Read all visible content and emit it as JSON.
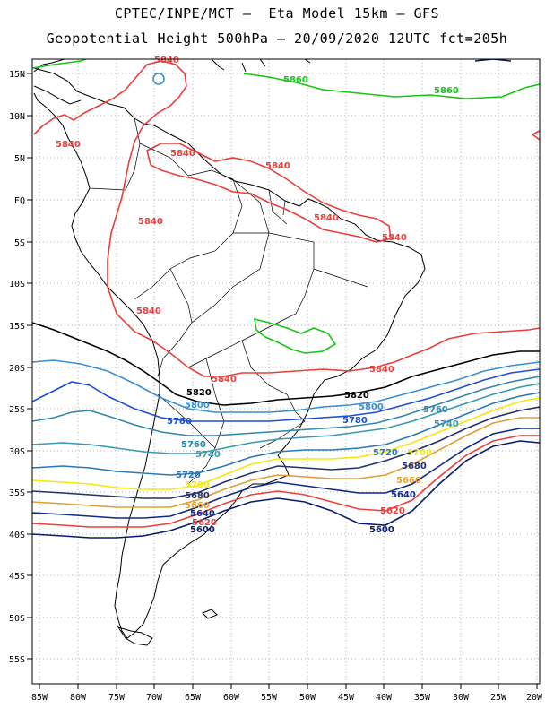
{
  "header": {
    "title_line1": "CPTEC/INPE/MCT –  Eta Model 15km – GFS",
    "title_line2": "Geopotential Height 500hPa – 20/09/2020 12UTC fct=205h"
  },
  "axes": {
    "lat_labels": [
      "15N",
      "10N",
      "5N",
      "EQ",
      "5S",
      "10S",
      "15S",
      "20S",
      "25S",
      "30S",
      "35S",
      "40S",
      "45S",
      "50S",
      "55S"
    ],
    "lon_labels": [
      "85W",
      "80W",
      "75W",
      "70W",
      "65W",
      "60W",
      "55W",
      "50W",
      "45W",
      "40W",
      "35W",
      "30W",
      "25W",
      "20W"
    ]
  },
  "colors": {
    "c5600": "#0a1a6e",
    "c5620": "#e8403c",
    "c5640": "#102a8a",
    "c5660": "#e0a030",
    "c5680": "#22306e",
    "c5700": "#f2ea0a",
    "c5720": "#2a78b8",
    "c5740": "#3a9ab0",
    "c5760": "#2f88a8",
    "c5780": "#1c4fd6",
    "c5800": "#3a8fd0",
    "c5820": "#000000",
    "c5840": "#e8403c",
    "c5860": "#14c814"
  },
  "contour_labels": [
    {
      "text": "5860",
      "color": "#14c814"
    },
    {
      "text": "5860",
      "color": "#14c814"
    },
    {
      "text": "5840",
      "color": "#e8403c"
    },
    {
      "text": "5840",
      "color": "#e8403c"
    },
    {
      "text": "5840",
      "color": "#e8403c"
    },
    {
      "text": "5840",
      "color": "#e8403c"
    },
    {
      "text": "5840",
      "color": "#e8403c"
    },
    {
      "text": "5840",
      "color": "#e8403c"
    },
    {
      "text": "5840",
      "color": "#e8403c"
    },
    {
      "text": "5840",
      "color": "#e8403c"
    },
    {
      "text": "5840",
      "color": "#e8403c"
    },
    {
      "text": "5840",
      "color": "#e8403c"
    },
    {
      "text": "5820",
      "color": "#000000"
    },
    {
      "text": "5820",
      "color": "#000000"
    },
    {
      "text": "5800",
      "color": "#3a8fd0"
    },
    {
      "text": "5800",
      "color": "#3a8fd0"
    },
    {
      "text": "5780",
      "color": "#1c4fd6"
    },
    {
      "text": "5780",
      "color": "#1c4fd6"
    },
    {
      "text": "5760",
      "color": "#2f88a8"
    },
    {
      "text": "5760",
      "color": "#2f88a8"
    },
    {
      "text": "5740",
      "color": "#3a9ab0"
    },
    {
      "text": "5740",
      "color": "#3a9ab0"
    },
    {
      "text": "5720",
      "color": "#2a78b8"
    },
    {
      "text": "5720",
      "color": "#2a78b8"
    },
    {
      "text": "5700",
      "color": "#f2ea0a"
    },
    {
      "text": "5700",
      "color": "#f2ea0a"
    },
    {
      "text": "5680",
      "color": "#22306e"
    },
    {
      "text": "5680",
      "color": "#22306e"
    },
    {
      "text": "5660",
      "color": "#e0a030"
    },
    {
      "text": "5660",
      "color": "#e0a030"
    },
    {
      "text": "5640",
      "color": "#102a8a"
    },
    {
      "text": "5640",
      "color": "#102a8a"
    },
    {
      "text": "5620",
      "color": "#e8403c"
    },
    {
      "text": "5620",
      "color": "#e8403c"
    },
    {
      "text": "5600",
      "color": "#0a1a6e"
    },
    {
      "text": "5600",
      "color": "#0a1a6e"
    }
  ]
}
